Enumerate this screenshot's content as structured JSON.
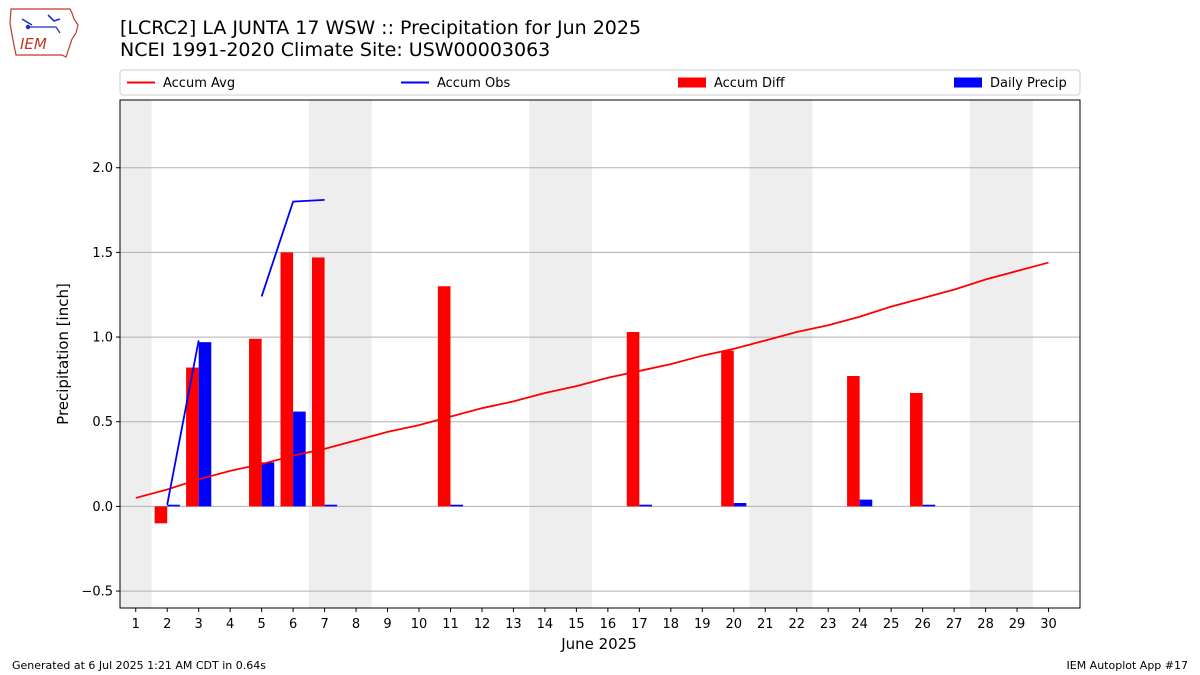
{
  "header": {
    "title_line1": "[LCRC2] LA JUNTA 17 WSW :: Precipitation for Jun 2025",
    "title_line2": "NCEI 1991-2020 Climate Site: USW00003063",
    "logo_text": "IEM"
  },
  "footer": {
    "generated": "Generated at 6 Jul 2025 1:21 AM CDT in 0.64s",
    "app": "IEM Autoplot App #17"
  },
  "colors": {
    "accum_avg": "#ff0000",
    "accum_obs": "#0000ff",
    "accum_diff": "#ff0000",
    "daily_precip": "#0000ff",
    "weekend_shade": "#eeeeee",
    "grid": "#b0b0b0"
  },
  "chart_data": {
    "type": "bar",
    "xlabel": "June 2025",
    "ylabel": "Precipitation [inch]",
    "xlim": [
      0.5,
      31.0
    ],
    "ylim": [
      -0.6,
      2.4
    ],
    "yticks": [
      -0.5,
      0.0,
      0.5,
      1.0,
      1.5,
      2.0
    ],
    "ytick_labels": [
      "−0.5",
      "0.0",
      "0.5",
      "1.0",
      "1.5",
      "2.0"
    ],
    "xticks": [
      1,
      2,
      3,
      4,
      5,
      6,
      7,
      8,
      9,
      10,
      11,
      12,
      13,
      14,
      15,
      16,
      17,
      18,
      19,
      20,
      21,
      22,
      23,
      24,
      25,
      26,
      27,
      28,
      29,
      30
    ],
    "grid": "y",
    "legend_position": "top",
    "legend": [
      "Accum Avg",
      "Accum Obs",
      "Accum Diff",
      "Daily Precip"
    ],
    "weekend_shading": [
      [
        0.5,
        1.5
      ],
      [
        6.5,
        8.5
      ],
      [
        13.5,
        15.5
      ],
      [
        20.5,
        22.5
      ],
      [
        27.5,
        29.5
      ]
    ],
    "series": [
      {
        "name": "Accum Avg",
        "kind": "line",
        "days": [
          1,
          2,
          3,
          4,
          5,
          6,
          7,
          8,
          9,
          10,
          11,
          12,
          13,
          14,
          15,
          16,
          17,
          18,
          19,
          20,
          21,
          22,
          23,
          24,
          25,
          26,
          27,
          28,
          29,
          30
        ],
        "values": [
          0.05,
          0.1,
          0.16,
          0.21,
          0.25,
          0.3,
          0.34,
          0.39,
          0.44,
          0.48,
          0.53,
          0.58,
          0.62,
          0.67,
          0.71,
          0.76,
          0.8,
          0.84,
          0.89,
          0.93,
          0.98,
          1.03,
          1.07,
          1.12,
          1.18,
          1.23,
          1.28,
          1.34,
          1.39,
          1.44
        ]
      },
      {
        "name": "Accum Obs",
        "kind": "line",
        "segments": [
          {
            "days": [
              2,
              3
            ],
            "values": [
              0.01,
              0.98
            ]
          },
          {
            "days": [
              5,
              6,
              7
            ],
            "values": [
              1.24,
              1.8,
              1.81
            ]
          }
        ]
      },
      {
        "name": "Accum Diff",
        "kind": "bar",
        "days": [
          2,
          3,
          5,
          6,
          7,
          11,
          17,
          20,
          24,
          26
        ],
        "values": [
          -0.1,
          0.82,
          0.99,
          1.5,
          1.47,
          1.3,
          1.03,
          0.92,
          0.77,
          0.67
        ]
      },
      {
        "name": "Daily Precip",
        "kind": "bar",
        "days": [
          2,
          3,
          5,
          6,
          7,
          11,
          17,
          20,
          24,
          26
        ],
        "values": [
          0.01,
          0.97,
          0.26,
          0.56,
          0.01,
          0.01,
          0.01,
          0.02,
          0.04,
          0.01
        ]
      }
    ]
  }
}
